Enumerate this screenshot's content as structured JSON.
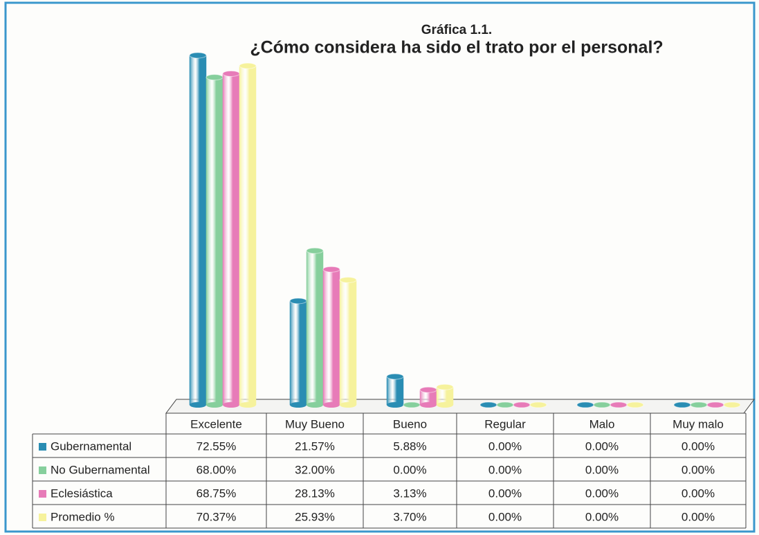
{
  "chart_data": {
    "type": "bar",
    "title": "Gráfica 1.1.",
    "subtitle": "¿Cómo considera ha sido el trato por el personal?",
    "categories": [
      "Excelente",
      "Muy Bueno",
      "Bueno",
      "Regular",
      "Malo",
      "Muy malo"
    ],
    "series": [
      {
        "name": "Gubernamental",
        "color": "#2a8db3",
        "values": [
          72.55,
          21.57,
          5.88,
          0,
          0,
          0
        ],
        "value_labels": [
          "72.55%",
          "21.57%",
          "5.88%",
          "0.00%",
          "0.00%",
          "0.00%"
        ]
      },
      {
        "name": "No Gubernamental",
        "color": "#86cf9c",
        "values": [
          68,
          32,
          0,
          0,
          0,
          0
        ],
        "value_labels": [
          "68.00%",
          "32.00%",
          "0.00%",
          "0.00%",
          "0.00%",
          "0.00%"
        ]
      },
      {
        "name": "Eclesiástica",
        "color": "#e77bb8",
        "values": [
          68.75,
          28.13,
          3.13,
          0,
          0,
          0
        ],
        "value_labels": [
          "68.75%",
          "28.13%",
          "3.13%",
          "0.00%",
          "0.00%",
          "0.00%"
        ]
      },
      {
        "name": "Promedio %",
        "color": "#f6f29c",
        "values": [
          70.37,
          25.93,
          3.7,
          0,
          0,
          0
        ],
        "value_labels": [
          "70.37%",
          "25.93%",
          "3.70%",
          "0.00%",
          "0.00%",
          "0.00%"
        ]
      }
    ]
  }
}
